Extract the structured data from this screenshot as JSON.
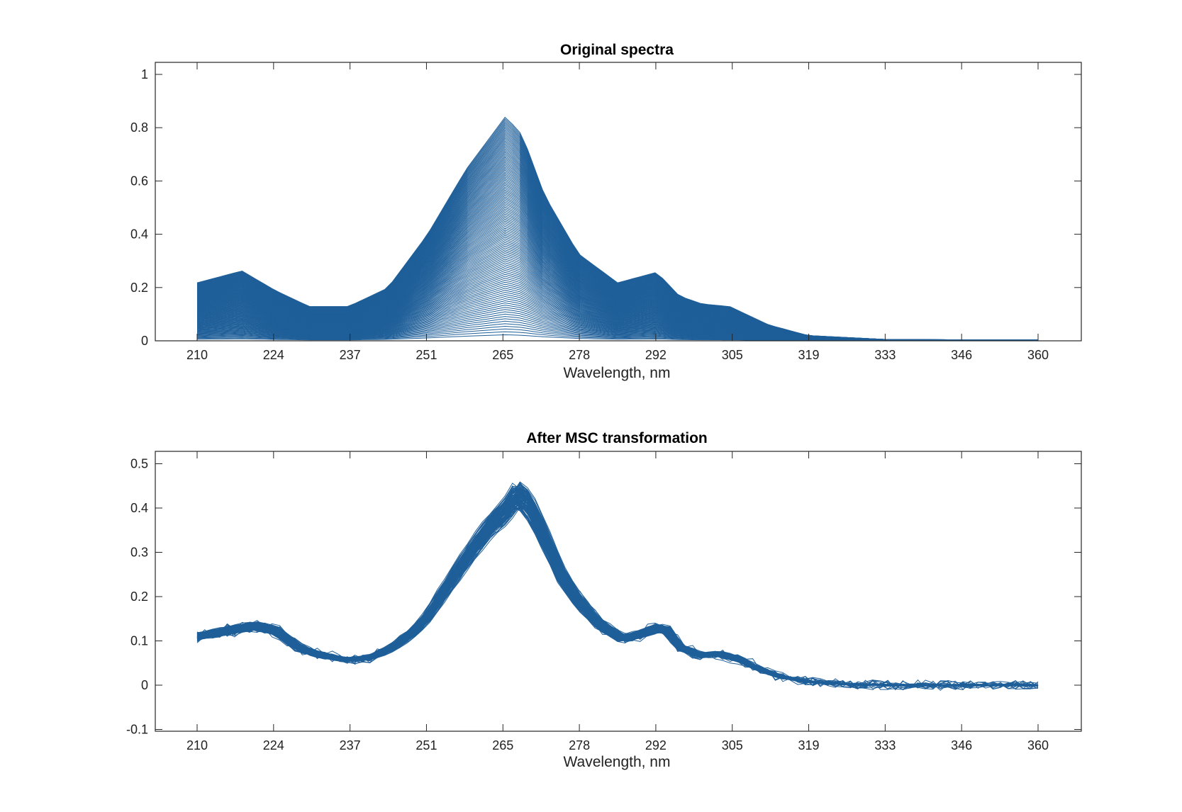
{
  "chart_data": [
    {
      "type": "line",
      "title": "Original spectra",
      "xlabel": "Wavelength, nm",
      "ylabel": "",
      "xlim": [
        210,
        360
      ],
      "ylim": [
        0,
        1
      ],
      "xticks": [
        "210",
        "224",
        "237",
        "251",
        "265",
        "278",
        "292",
        "305",
        "319",
        "333",
        "346",
        "360"
      ],
      "yticks": [
        "0",
        "0.2",
        "0.4",
        "0.6",
        "0.8",
        "1"
      ],
      "series_count": 120,
      "line_color": "#1f5f99",
      "grid": false,
      "legend": false,
      "envelope_max": {
        "x": [
          210,
          218,
          224,
          230,
          237,
          244,
          251,
          258,
          265,
          268,
          272,
          278,
          285,
          292,
          296,
          300,
          305,
          312,
          319,
          333,
          346,
          360
        ],
        "y": [
          0.22,
          0.265,
          0.19,
          0.13,
          0.13,
          0.2,
          0.4,
          0.65,
          0.85,
          0.78,
          0.55,
          0.33,
          0.22,
          0.26,
          0.17,
          0.14,
          0.13,
          0.06,
          0.02,
          0.005,
          0.004,
          0.004
        ]
      }
    },
    {
      "type": "line",
      "title": "After MSC transformation",
      "xlabel": "Wavelength, nm",
      "ylabel": "",
      "xlim": [
        210,
        360
      ],
      "ylim": [
        -0.1,
        0.5
      ],
      "xticks": [
        "210",
        "224",
        "237",
        "251",
        "265",
        "278",
        "292",
        "305",
        "319",
        "333",
        "346",
        "360"
      ],
      "yticks": [
        "-0.1",
        "0",
        "0.1",
        "0.2",
        "0.3",
        "0.4",
        "0.5"
      ],
      "series_count": 120,
      "line_color": "#1f5f99",
      "grid": false,
      "legend": false,
      "mean_curve": {
        "x": [
          210,
          216,
          220,
          224,
          228,
          232,
          237,
          241,
          245,
          249,
          251,
          255,
          258,
          262,
          265,
          267,
          269,
          272,
          275,
          278,
          282,
          286,
          289,
          292,
          294,
          296,
          300,
          303,
          307,
          310,
          314,
          319,
          325,
          333,
          346,
          360
        ],
        "y": [
          0.115,
          0.13,
          0.14,
          0.13,
          0.09,
          0.07,
          0.06,
          0.065,
          0.09,
          0.13,
          0.16,
          0.24,
          0.3,
          0.37,
          0.41,
          0.45,
          0.43,
          0.35,
          0.26,
          0.2,
          0.14,
          0.11,
          0.12,
          0.135,
          0.13,
          0.09,
          0.07,
          0.075,
          0.06,
          0.04,
          0.02,
          0.008,
          0.003,
          0.0,
          0.0,
          0.0
        ]
      }
    }
  ]
}
